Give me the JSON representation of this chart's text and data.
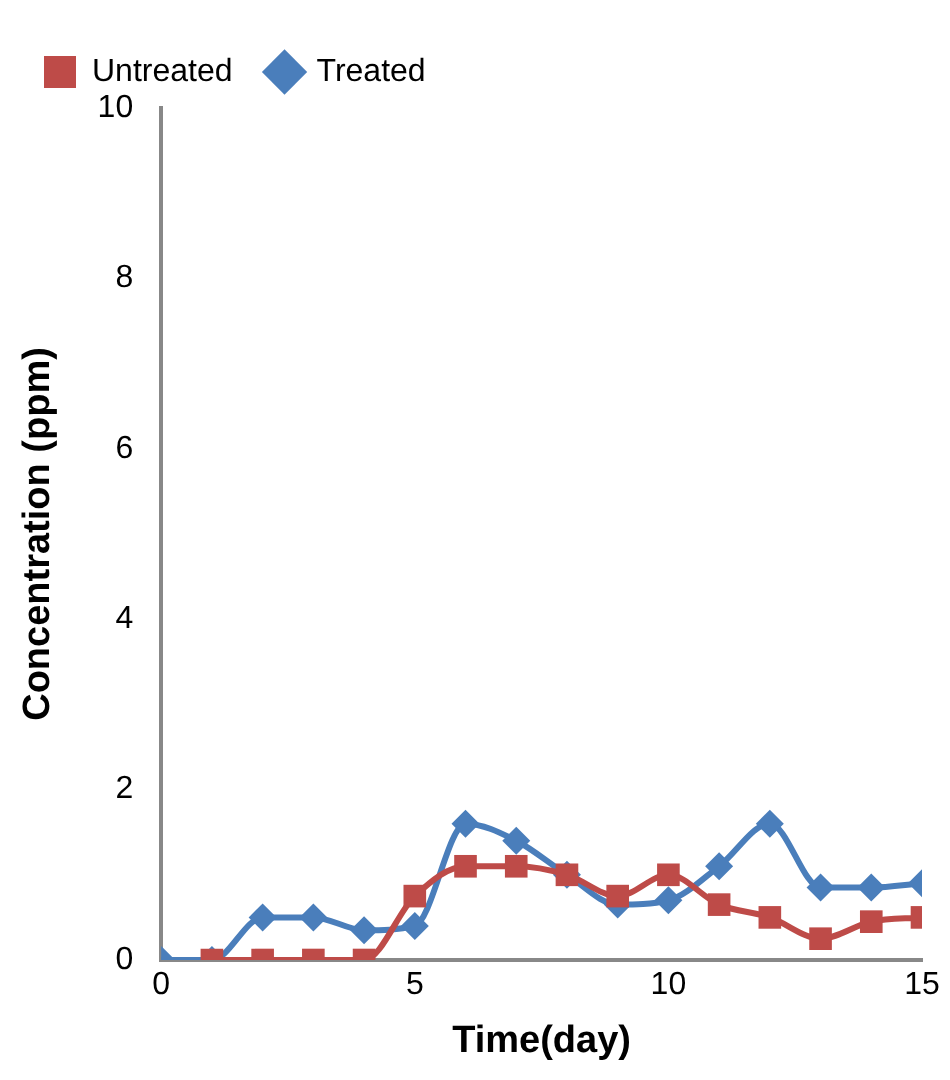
{
  "chart_data": {
    "type": "line",
    "xlabel": "Time(day)",
    "ylabel": "Concentration (ppm)",
    "xlim": [
      0,
      15
    ],
    "xticks": [
      0,
      5,
      10,
      15
    ],
    "ylim": [
      0,
      10
    ],
    "yticks": [
      0,
      2,
      4,
      6,
      8,
      10
    ],
    "grid": false,
    "legend": "top left",
    "line_style": "solid",
    "series": [
      {
        "name": "Treated",
        "color": "#4a7ebb",
        "marker": "diamond",
        "x": [
          0,
          1,
          2,
          3,
          4,
          5,
          6,
          7,
          8,
          9,
          10,
          11,
          12,
          13,
          14,
          15
        ],
        "values": [
          0,
          0,
          0.5,
          0.5,
          0.35,
          0.4,
          1.6,
          1.4,
          1.0,
          0.65,
          0.7,
          1.1,
          1.6,
          0.85,
          0.85,
          0.9
        ]
      },
      {
        "name": "Untreated",
        "color": "#be4b48",
        "marker": "square",
        "x": [
          1,
          2,
          3,
          4,
          5,
          6,
          7,
          8,
          9,
          10,
          11,
          12,
          13,
          14,
          15
        ],
        "values": [
          0,
          0,
          0,
          0,
          0.75,
          1.1,
          1.1,
          1.0,
          0.75,
          1.0,
          0.65,
          0.5,
          0.25,
          0.45,
          0.5
        ]
      }
    ]
  }
}
